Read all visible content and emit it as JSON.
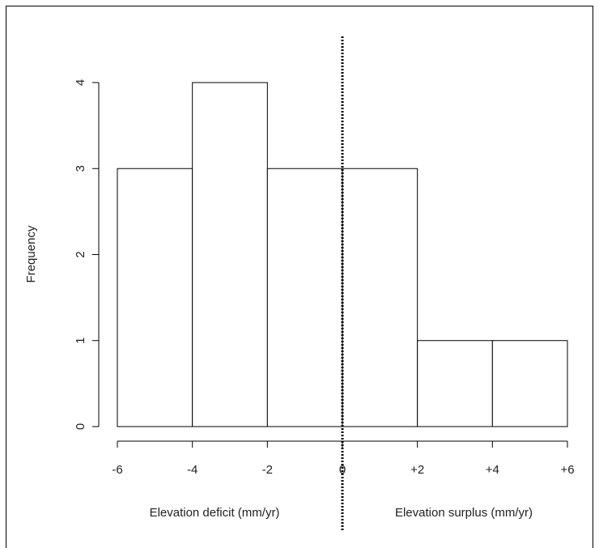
{
  "chart_data": {
    "type": "bar",
    "bins": [
      {
        "from": -6,
        "to": -4,
        "count": 3
      },
      {
        "from": -4,
        "to": -2,
        "count": 4
      },
      {
        "from": -2,
        "to": 0,
        "count": 3
      },
      {
        "from": 0,
        "to": 2,
        "count": 3
      },
      {
        "from": 2,
        "to": 4,
        "count": 1
      },
      {
        "from": 4,
        "to": 6,
        "count": 1
      }
    ],
    "ylabel": "Frequency",
    "xlabel_left": "Elevation deficit (mm/yr)",
    "xlabel_right": "Elevation surplus (mm/yr)",
    "x_ticks": [
      {
        "value": -6,
        "label": "-6"
      },
      {
        "value": -4,
        "label": "-4"
      },
      {
        "value": -2,
        "label": "-2"
      },
      {
        "value": 0,
        "label": "0"
      },
      {
        "value": 2,
        "label": "+2"
      },
      {
        "value": 4,
        "label": "+4"
      },
      {
        "value": 6,
        "label": "+6"
      }
    ],
    "y_ticks": [
      {
        "value": 0,
        "label": "0"
      },
      {
        "value": 1,
        "label": "1"
      },
      {
        "value": 2,
        "label": "2"
      },
      {
        "value": 3,
        "label": "3"
      },
      {
        "value": 4,
        "label": "4"
      }
    ],
    "xlim": [
      -6,
      6
    ],
    "ylim": [
      0,
      4
    ],
    "reference_line": {
      "x": 0,
      "style": "dotted"
    },
    "grid": false
  }
}
